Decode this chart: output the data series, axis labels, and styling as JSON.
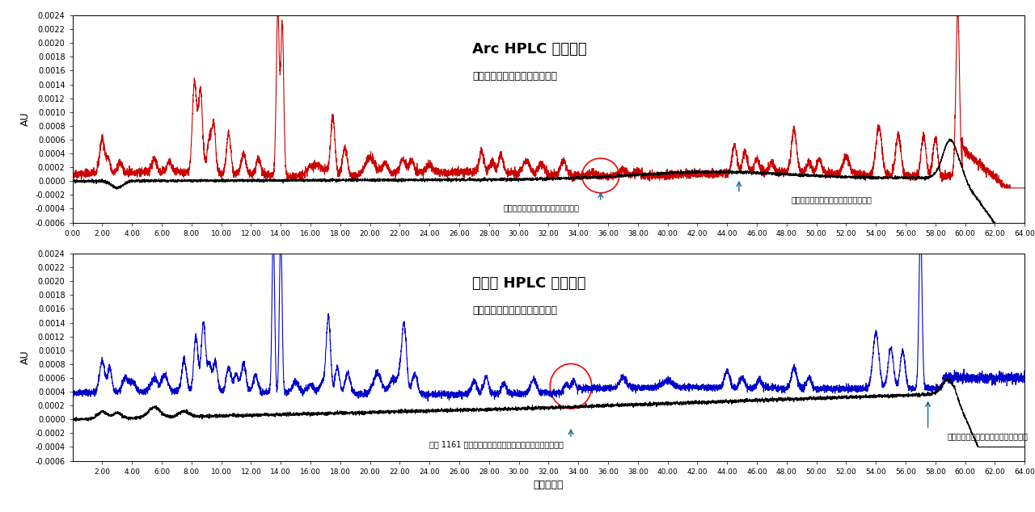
{
  "title_top": "Arc HPLC システム",
  "subtitle_top": "試験サンプルのクロマトグラム",
  "title_bottom": "他社製 HPLC システム",
  "subtitle_bottom": "試験サンプルのクロマトグラム",
  "xlabel": "時間（分）",
  "ylabel": "AU",
  "xlim": [
    0.0,
    64.0
  ],
  "ylim": [
    -0.0006,
    0.0024
  ],
  "yticks": [
    -0.0006,
    -0.0004,
    -0.0002,
    0.0,
    0.0002,
    0.0004,
    0.0006,
    0.0008,
    0.001,
    0.0012,
    0.0014,
    0.0016,
    0.0018,
    0.002,
    0.0022,
    0.0024
  ],
  "color_top_sample": "#cc0000",
  "color_top_blank": "#000000",
  "color_bottom_sample": "#0000cc",
  "color_bottom_blank": "#000000",
  "annotation_top_text1": "クロルヘキシジンのピークが未検出",
  "annotation_top_text2": "分析後ブランク試料のクロマトグラム",
  "annotation_bottom_text1": "面積 1161 のクロルヘキシジンのピークが検出されている",
  "annotation_bottom_text2": "分析後ブランク試料のクロマトグラム"
}
